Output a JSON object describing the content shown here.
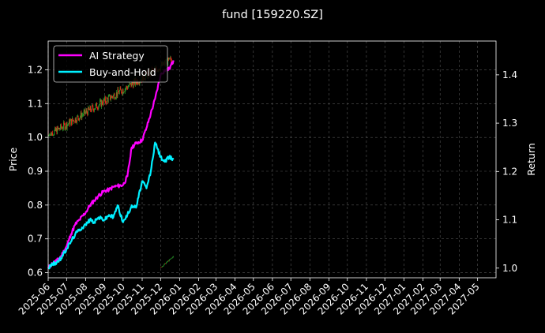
{
  "chart_data": {
    "type": "line",
    "title": "fund [159220.SZ]",
    "xlabel": "",
    "ylabel": "Price",
    "ylabel_right": "Return",
    "background": "#000000",
    "grid": true,
    "legend_position": "upper-left",
    "x_tick_labels": [
      "2025-06",
      "2025-07",
      "2025-08",
      "2025-09",
      "2025-10",
      "2025-11",
      "2025-12",
      "2026-01",
      "2026-02",
      "2026-03",
      "2026-04",
      "2026-05",
      "2026-06",
      "2026-07",
      "2026-08",
      "2026-09",
      "2026-10",
      "2026-11",
      "2026-12",
      "2027-01",
      "2027-02",
      "2027-03",
      "2027-04",
      "2027-05"
    ],
    "xlim": [
      "2025-06-01",
      "2027-05-31"
    ],
    "ylim_left": [
      0.585,
      1.285
    ],
    "ylim_right": [
      0.98,
      1.47
    ],
    "y_ticks_left": [
      0.6,
      0.7,
      0.8,
      0.9,
      1.0,
      1.1,
      1.2
    ],
    "y_ticks_right": [
      1.0,
      1.1,
      1.2,
      1.3,
      1.4
    ],
    "series": [
      {
        "name": "AI Strategy",
        "color": "#ff00ff",
        "axis": "right",
        "points": [
          [
            "2025-06-01",
            1.0
          ],
          [
            "2025-06-08",
            1.01
          ],
          [
            "2025-06-15",
            1.015
          ],
          [
            "2025-06-22",
            1.025
          ],
          [
            "2025-07-01",
            1.045
          ],
          [
            "2025-07-08",
            1.07
          ],
          [
            "2025-07-15",
            1.09
          ],
          [
            "2025-07-22",
            1.1
          ],
          [
            "2025-08-01",
            1.115
          ],
          [
            "2025-08-08",
            1.13
          ],
          [
            "2025-08-15",
            1.14
          ],
          [
            "2025-08-22",
            1.15
          ],
          [
            "2025-09-01",
            1.16
          ],
          [
            "2025-09-08",
            1.162
          ],
          [
            "2025-09-15",
            1.168
          ],
          [
            "2025-09-22",
            1.17
          ],
          [
            "2025-10-01",
            1.172
          ],
          [
            "2025-10-08",
            1.19
          ],
          [
            "2025-10-15",
            1.25
          ],
          [
            "2025-10-22",
            1.258
          ],
          [
            "2025-11-01",
            1.265
          ],
          [
            "2025-11-08",
            1.29
          ],
          [
            "2025-11-15",
            1.32
          ],
          [
            "2025-11-22",
            1.35
          ],
          [
            "2025-12-01",
            1.4
          ],
          [
            "2025-12-08",
            1.41
          ],
          [
            "2025-12-15",
            1.412
          ],
          [
            "2025-12-22",
            1.43
          ]
        ]
      },
      {
        "name": "Buy-and-Hold",
        "color": "#00f0ff",
        "axis": "right",
        "points": [
          [
            "2025-06-01",
            1.0
          ],
          [
            "2025-06-08",
            1.008
          ],
          [
            "2025-06-15",
            1.012
          ],
          [
            "2025-06-22",
            1.02
          ],
          [
            "2025-07-01",
            1.04
          ],
          [
            "2025-07-08",
            1.055
          ],
          [
            "2025-07-15",
            1.07
          ],
          [
            "2025-07-22",
            1.08
          ],
          [
            "2025-08-01",
            1.09
          ],
          [
            "2025-08-08",
            1.1
          ],
          [
            "2025-08-15",
            1.095
          ],
          [
            "2025-08-22",
            1.105
          ],
          [
            "2025-09-01",
            1.1
          ],
          [
            "2025-09-08",
            1.11
          ],
          [
            "2025-09-15",
            1.105
          ],
          [
            "2025-09-22",
            1.13
          ],
          [
            "2025-10-01",
            1.095
          ],
          [
            "2025-10-08",
            1.11
          ],
          [
            "2025-10-15",
            1.13
          ],
          [
            "2025-10-22",
            1.125
          ],
          [
            "2025-11-01",
            1.18
          ],
          [
            "2025-11-08",
            1.165
          ],
          [
            "2025-11-15",
            1.2
          ],
          [
            "2025-11-22",
            1.26
          ],
          [
            "2025-12-01",
            1.23
          ],
          [
            "2025-12-08",
            1.22
          ],
          [
            "2025-12-15",
            1.23
          ],
          [
            "2025-12-22",
            1.225
          ]
        ]
      }
    ],
    "candles": {
      "up_color": "#2ca02c",
      "down_color": "#ff1a1a",
      "axis": "left",
      "ranges": [
        {
          "start": "2025-06-01",
          "end": "2025-12-22",
          "low": 1.005,
          "high": 1.245
        },
        {
          "start": "2025-12-01",
          "end": "2025-12-22",
          "low": 0.615,
          "high": 0.65
        }
      ]
    }
  }
}
